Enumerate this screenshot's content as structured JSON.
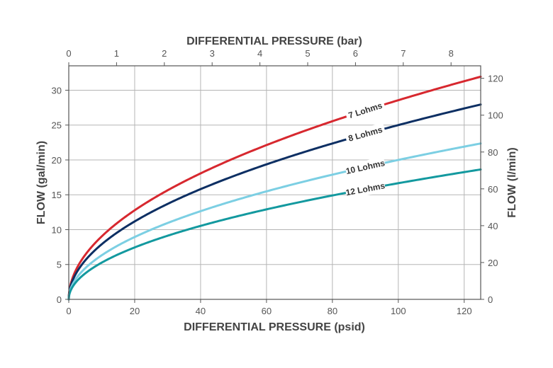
{
  "chart_data": {
    "type": "line",
    "title": "",
    "xlabel": "DIFFERENTIAL PRESSURE (psid)",
    "x2label": "DIFFERENTIAL PRESSURE (bar)",
    "ylabel": "FLOW (gal/min)",
    "y2label": "FLOW (l/min)",
    "xlim": [
      0,
      125
    ],
    "ylim": [
      0,
      33.5
    ],
    "x2lim": [
      0,
      8.62
    ],
    "y2lim": [
      0,
      126.8
    ],
    "xticks": [
      0,
      20,
      40,
      60,
      80,
      100,
      120
    ],
    "yticks": [
      0,
      5,
      10,
      15,
      20,
      25,
      30
    ],
    "x2ticks": [
      0,
      1,
      2,
      3,
      4,
      5,
      6,
      7,
      8
    ],
    "y2ticks": [
      0,
      20,
      40,
      60,
      80,
      100,
      120
    ],
    "grid": true,
    "legend": "inline labels on curves",
    "x": [
      0,
      1,
      2,
      5,
      10,
      20,
      30,
      40,
      50,
      60,
      70,
      80,
      90,
      100,
      110,
      120,
      125
    ],
    "series": [
      {
        "name": "7 Lohms",
        "color": "#d7282f",
        "label_at_x": 90,
        "values": [
          0,
          2.86,
          4.04,
          6.39,
          9.04,
          12.78,
          15.65,
          18.07,
          20.2,
          22.13,
          23.9,
          25.56,
          27.11,
          28.57,
          29.97,
          31.3,
          31.94
        ]
      },
      {
        "name": "8 Lohms",
        "color": "#0d2f63",
        "label_at_x": 90,
        "values": [
          0,
          2.5,
          3.54,
          5.59,
          7.91,
          11.18,
          13.69,
          15.81,
          17.68,
          19.36,
          20.92,
          22.36,
          23.72,
          25.0,
          26.22,
          27.39,
          27.95
        ]
      },
      {
        "name": "10 Lohms",
        "color": "#7ccfe3",
        "label_at_x": 90,
        "values": [
          0,
          2.0,
          2.83,
          4.47,
          6.33,
          8.94,
          10.95,
          12.65,
          14.14,
          15.49,
          16.73,
          17.89,
          18.97,
          20.0,
          20.98,
          21.91,
          22.36
        ]
      },
      {
        "name": "12 Lohms",
        "color": "#13999f",
        "label_at_x": 90,
        "values": [
          0,
          1.67,
          2.36,
          3.73,
          5.27,
          7.45,
          9.13,
          10.54,
          11.79,
          12.91,
          13.94,
          14.91,
          15.81,
          16.67,
          17.48,
          18.26,
          18.63
        ]
      }
    ]
  }
}
